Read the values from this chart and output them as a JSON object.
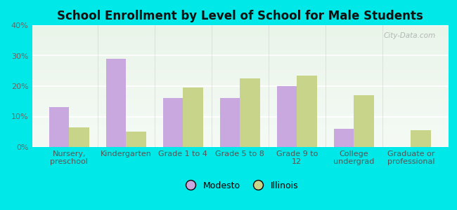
{
  "title": "School Enrollment by Level of School for Male Students",
  "categories": [
    "Nursery,\npreschool",
    "Kindergarten",
    "Grade 1 to 4",
    "Grade 5 to 8",
    "Grade 9 to\n12",
    "College\nundergrad",
    "Graduate or\nprofessional"
  ],
  "modesto_values": [
    13,
    29,
    16,
    16,
    20,
    6,
    0
  ],
  "illinois_values": [
    6.5,
    5,
    19.5,
    22.5,
    23.5,
    17,
    5.5
  ],
  "modesto_color": "#c9a8e0",
  "illinois_color": "#c8d48a",
  "background_color": "#00e8e8",
  "plot_bg_top": "#eaf5ea",
  "plot_bg_bottom": "#f5faf5",
  "ylim": [
    0,
    40
  ],
  "yticks": [
    0,
    10,
    20,
    30,
    40
  ],
  "ytick_labels": [
    "0%",
    "10%",
    "20%",
    "30%",
    "40%"
  ],
  "legend_labels": [
    "Modesto",
    "Illinois"
  ],
  "title_fontsize": 12,
  "tick_fontsize": 8,
  "legend_fontsize": 9,
  "bar_width": 0.35,
  "watermark_text": "City-Data.com"
}
